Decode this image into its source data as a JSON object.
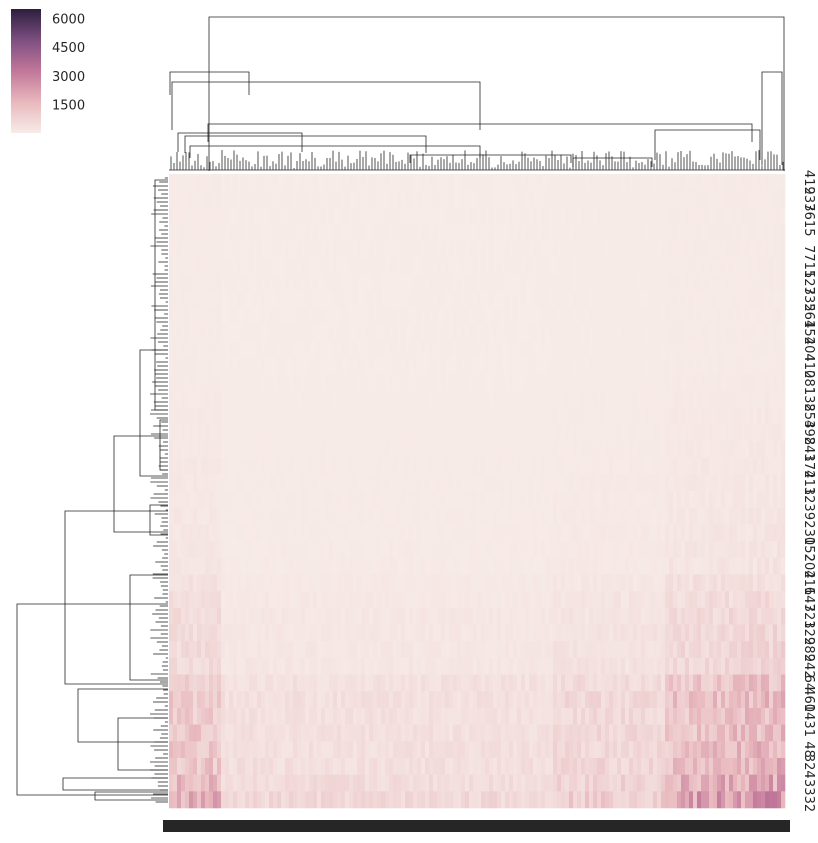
{
  "chart_data": {
    "type": "heatmap",
    "title": "",
    "xlabel": "",
    "ylabel": "",
    "colorbar": {
      "ticks": [
        1500,
        3000,
        4500,
        6000
      ],
      "range": [
        0,
        6500
      ],
      "colors": [
        "#f7ece8",
        "#e8b8bd",
        "#c27799",
        "#7d4f81",
        "#2d1e3e"
      ]
    },
    "row_labels": [
      "419",
      "237",
      "361",
      "5",
      "7",
      "711",
      "527",
      "335",
      "261",
      "452",
      "404",
      "410",
      "281",
      "138",
      "254",
      "392",
      "843",
      "174",
      "211",
      "323",
      "9",
      "230",
      "152",
      "204",
      "216",
      "147",
      "321",
      "329",
      "289",
      "242",
      "64",
      "460",
      "143",
      "1",
      "48",
      "324",
      "3",
      "332"
    ],
    "row_values": [
      30,
      30,
      30,
      30,
      30,
      30,
      30,
      30,
      30,
      30,
      30,
      30,
      40,
      50,
      60,
      60,
      70,
      80,
      90,
      90,
      100,
      110,
      120,
      130,
      200,
      250,
      300,
      320,
      330,
      340,
      600,
      700,
      650,
      700,
      700,
      750,
      900,
      1100
    ],
    "column_hot_regions": [
      "left",
      "right"
    ],
    "has_row_dendrogram": true,
    "has_col_dendrogram": true
  }
}
